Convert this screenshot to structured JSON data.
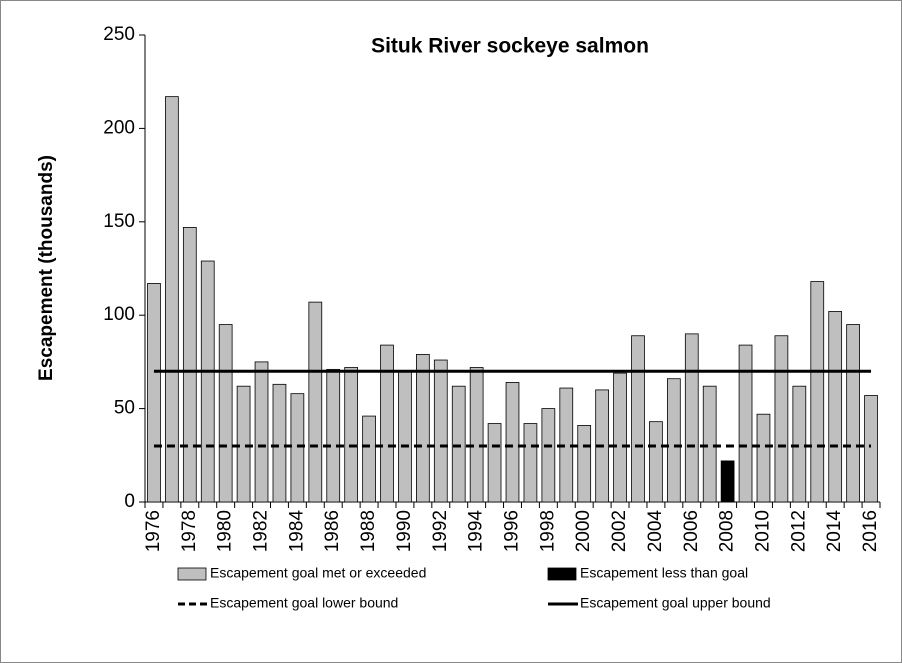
{
  "chart_data": {
    "type": "bar",
    "title": "Situk River sockeye salmon",
    "y_label": "Escapement (thousands)",
    "categories": [
      "1976",
      null,
      "1978",
      null,
      "1980",
      null,
      "1982",
      null,
      "1984",
      null,
      "1986",
      null,
      "1988",
      null,
      "1990",
      null,
      "1992",
      null,
      "1994",
      null,
      "1996",
      null,
      "1998",
      null,
      "2000",
      null,
      "2002",
      null,
      "2004",
      null,
      "2006",
      null,
      "2008",
      null,
      "2010",
      null,
      "2012",
      null,
      "2014",
      null,
      "2016"
    ],
    "series": [
      {
        "name": "Escapement goal met or exceeded",
        "type": "bar",
        "color": "#bfbfbf",
        "values": [
          117,
          217,
          147,
          129,
          95,
          62,
          75,
          63,
          58,
          107,
          71,
          72,
          46,
          84,
          70,
          79,
          76,
          62,
          72,
          42,
          64,
          42,
          50,
          61,
          41,
          60,
          69,
          89,
          43,
          66,
          90,
          62,
          null,
          84,
          47,
          89,
          62,
          118,
          102,
          95,
          57
        ]
      },
      {
        "name": "Escapement less than goal",
        "type": "bar",
        "color": "#000000",
        "values": [
          null,
          null,
          null,
          null,
          null,
          null,
          null,
          null,
          null,
          null,
          null,
          null,
          null,
          null,
          null,
          null,
          null,
          null,
          null,
          null,
          null,
          null,
          null,
          null,
          null,
          null,
          null,
          null,
          null,
          null,
          null,
          null,
          22,
          null,
          null,
          null,
          null,
          null,
          null,
          null,
          null
        ]
      },
      {
        "name": "Escapement goal lower bound",
        "type": "line",
        "dashed": true,
        "color": "#000000",
        "values": [
          30,
          30,
          30,
          30,
          30,
          30,
          30,
          30,
          30,
          30,
          30,
          30,
          30,
          30,
          30,
          30,
          30,
          30,
          30,
          30,
          30,
          30,
          30,
          30,
          30,
          30,
          30,
          30,
          30,
          30,
          30,
          30,
          30,
          30,
          30,
          30,
          30,
          30,
          30,
          30,
          30
        ]
      },
      {
        "name": "Escapement goal upper bound",
        "type": "line",
        "dashed": false,
        "color": "#000000",
        "values": [
          70,
          70,
          70,
          70,
          70,
          70,
          70,
          70,
          70,
          70,
          70,
          70,
          70,
          70,
          70,
          70,
          70,
          70,
          70,
          70,
          70,
          70,
          70,
          70,
          70,
          70,
          70,
          70,
          70,
          70,
          70,
          70,
          70,
          70,
          70,
          70,
          70,
          70,
          70,
          70,
          70
        ]
      }
    ],
    "ylim": [
      0,
      250
    ],
    "yticks": [
      0,
      50,
      100,
      150,
      200,
      250
    ],
    "grid": false,
    "legend": "bottom"
  }
}
